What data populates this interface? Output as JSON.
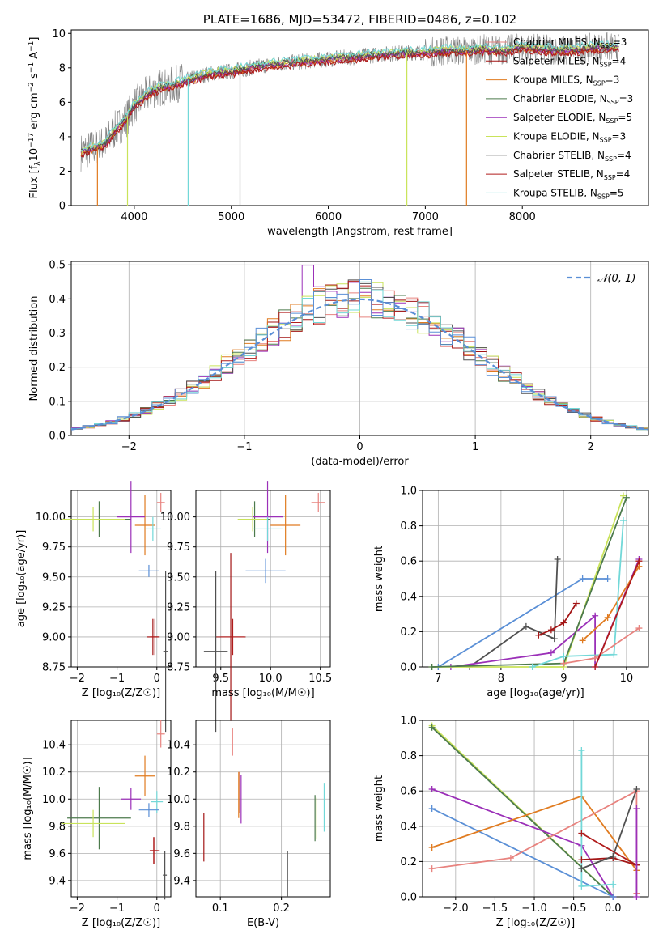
{
  "colors": {
    "ChM": "#e8837f",
    "SaM": "#a31515",
    "KrM": "#e07b20",
    "ChE": "#4c7a4c",
    "SaE": "#9b30b8",
    "KrE": "#c9e35a",
    "ChS": "#505050",
    "SaS": "#b01c1c",
    "KrS": "#72d8d8",
    "gauss": "#5a8fd6",
    "grid": "#b0b0b0"
  },
  "series": [
    {
      "key": "ChM",
      "label": "Chabrier MILES, N",
      "nssp": "=3"
    },
    {
      "key": "SaM",
      "label": "Salpeter MILES, N",
      "nssp": "=4"
    },
    {
      "key": "KrM",
      "label": "Kroupa MILES, N",
      "nssp": "=3"
    },
    {
      "key": "ChE",
      "label": "Chabrier ELODIE, N",
      "nssp": "=3"
    },
    {
      "key": "SaE",
      "label": "Salpeter ELODIE, N",
      "nssp": "=5"
    },
    {
      "key": "KrE",
      "label": "Kroupa ELODIE, N",
      "nssp": "=3"
    },
    {
      "key": "ChS",
      "label": "Chabrier STELIB, N",
      "nssp": "=4"
    },
    {
      "key": "SaS",
      "label": "Salpeter STELIB, N",
      "nssp": "=4"
    },
    {
      "key": "KrS",
      "label": "Kroupa STELIB, N",
      "nssp": "=5"
    }
  ],
  "chart_data": [
    {
      "id": "spectrum",
      "type": "line",
      "title": "PLATE=1686, MJD=53472, FIBERID=0486, z=0.102",
      "xlabel": "wavelength [Angstrom, rest frame]",
      "ylabel": "Flux [f_λ10^-17 erg cm^-2 s^-1 A^-1]",
      "xlim": [
        3350,
        9300
      ],
      "ylim": [
        0,
        10.2
      ],
      "xticks": [
        4000,
        5000,
        6000,
        7000,
        8000
      ],
      "yticks": [
        0,
        2,
        4,
        6,
        8,
        10
      ],
      "observed": {
        "x": [
          3450,
          3550,
          3700,
          3800,
          3900,
          4000,
          4100,
          4200,
          4300,
          4400,
          4500,
          4600,
          4800,
          5000,
          5200,
          5400,
          5600,
          5800,
          6000,
          6200,
          6400,
          6600,
          6800,
          7000,
          7200,
          7400,
          7600,
          7800,
          8000,
          8200,
          8400,
          8600,
          8800,
          9000
        ],
        "y": [
          3.1,
          3.3,
          3.6,
          4.4,
          4.9,
          5.8,
          6.3,
          6.7,
          6.9,
          7.0,
          7.2,
          7.4,
          7.7,
          7.8,
          8.0,
          8.2,
          8.3,
          8.4,
          8.5,
          8.6,
          8.7,
          8.8,
          8.9,
          8.9,
          9.0,
          9.0,
          9.1,
          9.0,
          9.2,
          9.1,
          9.0,
          9.1,
          9.2,
          9.2
        ]
      },
      "model_shift": {
        "ChM": 0.0,
        "SaM": -0.15,
        "KrM": -0.1,
        "ChE": 0.05,
        "SaE": -0.05,
        "KrE": 0.1,
        "ChS": 0.0,
        "SaS": -0.2,
        "KrS": 0.2
      },
      "dips": [
        {
          "x": 3620,
          "y": 0
        },
        {
          "x": 3930,
          "y": 0
        },
        {
          "x": 4555,
          "y": 0
        },
        {
          "x": 5090,
          "y": 0
        },
        {
          "x": 6810,
          "y": 0
        },
        {
          "x": 7425,
          "y": 0
        }
      ]
    },
    {
      "id": "residuals",
      "type": "histogram",
      "xlabel": "(data-model)/error",
      "ylabel": "Normed distribution",
      "xlim": [
        -2.5,
        2.5
      ],
      "ylim": [
        0,
        0.51
      ],
      "xticks": [
        -2,
        -1,
        0,
        1,
        2
      ],
      "yticks": [
        0.0,
        0.1,
        0.2,
        0.3,
        0.4,
        0.5
      ],
      "gauss_label": "𝒩(0, 1)",
      "bin_width": 0.1
    },
    {
      "id": "age_vs_Z",
      "type": "errorbar",
      "xlabel": "Z [log₁₀(Z/Z☉)]",
      "ylabel": "age  [log₁₀(age/yr)]",
      "xlim": [
        -2.15,
        0.35
      ],
      "ylim": [
        8.75,
        10.22
      ],
      "xticks": [
        -2,
        -1,
        0
      ],
      "yticks": [
        8.75,
        9.0,
        9.25,
        9.5,
        9.75,
        10.0
      ],
      "points": [
        {
          "k": "ChM",
          "x": 0.1,
          "y": 10.12,
          "xe": 0.1,
          "ye": 0.08
        },
        {
          "k": "SaM",
          "x": -0.1,
          "y": 9.0,
          "xe": 0.15,
          "ye": 0.15
        },
        {
          "k": "KrM",
          "x": -0.3,
          "y": 9.93,
          "xe": 0.25,
          "ye": 0.25
        },
        {
          "k": "ChE",
          "x": -1.45,
          "y": 9.98,
          "xe": 0.8,
          "ye": 0.15
        },
        {
          "k": "SaE",
          "x": -0.65,
          "y": 10.0,
          "xe": 0.35,
          "ye": 0.3
        },
        {
          "k": "KrE",
          "x": -1.6,
          "y": 9.98,
          "xe": 0.8,
          "ye": 0.1
        },
        {
          "k": "ChS",
          "x": 0.22,
          "y": 8.88,
          "xe": 0.06,
          "ye": 0.67
        },
        {
          "k": "SaS",
          "x": -0.05,
          "y": 9.0,
          "xe": 0.12,
          "ye": 0.15
        },
        {
          "k": "KrS",
          "x": -0.1,
          "y": 9.9,
          "xe": 0.2,
          "ye": 0.1
        },
        {
          "k": "gauss",
          "x": -0.2,
          "y": 9.55,
          "xe": 0.25,
          "ye": 0.05
        }
      ]
    },
    {
      "id": "age_vs_mass",
      "type": "errorbar",
      "xlabel": "mass [log₁₀(M/M☉)]",
      "xlim": [
        9.25,
        10.6
      ],
      "ylim": [
        8.75,
        10.22
      ],
      "xticks": [
        9.5,
        10.0,
        10.5
      ],
      "yticks": [
        8.75,
        9.0,
        9.25,
        9.5,
        9.75,
        10.0
      ],
      "points": [
        {
          "k": "ChM",
          "x": 10.48,
          "y": 10.12,
          "xe": 0.07,
          "ye": 0.08
        },
        {
          "k": "SaM",
          "x": 9.6,
          "y": 9.0,
          "xe": 0.15,
          "ye": 0.7
        },
        {
          "k": "KrM",
          "x": 10.15,
          "y": 9.93,
          "xe": 0.15,
          "ye": 0.25
        },
        {
          "k": "ChE",
          "x": 9.84,
          "y": 9.98,
          "xe": 0.15,
          "ye": 0.15
        },
        {
          "k": "SaE",
          "x": 9.97,
          "y": 10.0,
          "xe": 0.15,
          "ye": 0.3
        },
        {
          "k": "KrE",
          "x": 9.82,
          "y": 9.98,
          "xe": 0.15,
          "ye": 0.1
        },
        {
          "k": "ChS",
          "x": 9.45,
          "y": 8.88,
          "xe": 0.12,
          "ye": 0.67
        },
        {
          "k": "SaS",
          "x": 9.62,
          "y": 9.0,
          "xe": 0.12,
          "ye": 0.15
        },
        {
          "k": "KrS",
          "x": 9.97,
          "y": 9.9,
          "xe": 0.15,
          "ye": 0.1
        },
        {
          "k": "gauss",
          "x": 9.95,
          "y": 9.55,
          "xe": 0.2,
          "ye": 0.1
        }
      ]
    },
    {
      "id": "weight_vs_age",
      "type": "line",
      "xlabel": "age  [log₁₀(age/yr)]",
      "ylabel": "mass weight",
      "xlim": [
        6.75,
        10.35
      ],
      "ylim": [
        0,
        1.0
      ],
      "xticks": [
        7,
        8,
        9,
        10
      ],
      "yticks": [
        0.0,
        0.2,
        0.4,
        0.6,
        0.8,
        1.0
      ],
      "lines": [
        {
          "k": "gauss",
          "x": [
            7.0,
            9.3,
            9.7
          ],
          "y": [
            0.0,
            0.5,
            0.5
          ]
        },
        {
          "k": "ChS",
          "x": 7.5,
          "y2": 0
        },
        {
          "k": "ChS",
          "x": [
            7.5,
            8.4,
            8.85,
            8.9
          ],
          "y": [
            0.0,
            0.23,
            0.16,
            0.61
          ]
        },
        {
          "k": "SaM",
          "x": [
            8.6,
            8.8,
            9.0,
            9.2
          ],
          "y": [
            0.18,
            0.21,
            0.25,
            0.36
          ]
        },
        {
          "k": "SaE",
          "x": [
            7.2,
            8.8,
            9.5,
            9.5,
            10.2
          ],
          "y": [
            0.0,
            0.08,
            0.29,
            0.0,
            0.61
          ]
        },
        {
          "k": "KrM",
          "x": [
            9.3,
            9.7,
            10.2
          ],
          "y": [
            0.15,
            0.28,
            0.57
          ]
        },
        {
          "k": "KrE",
          "x": [
            6.9,
            9.0,
            9.95
          ],
          "y": [
            0.0,
            0.0,
            0.97
          ]
        },
        {
          "k": "ChE",
          "x": [
            6.9,
            9.0,
            10.0
          ],
          "y": [
            0.0,
            0.02,
            0.96
          ]
        },
        {
          "k": "KrS",
          "x": [
            8.5,
            9.0,
            9.8,
            9.95
          ],
          "y": [
            0.0,
            0.06,
            0.07,
            0.83
          ]
        },
        {
          "k": "ChM",
          "x": [
            9.0,
            9.5,
            10.2
          ],
          "y": [
            0.02,
            0.05,
            0.22
          ]
        },
        {
          "k": "SaS",
          "x": [
            9.5,
            10.2
          ],
          "y": [
            0.0,
            0.6
          ]
        }
      ]
    },
    {
      "id": "mass_vs_Z",
      "type": "errorbar",
      "xlabel": "Z [log₁₀(Z/Z☉)]",
      "ylabel": "mass [log₁₀(M/M☉)]",
      "xlim": [
        -2.15,
        0.35
      ],
      "ylim": [
        9.28,
        10.58
      ],
      "xticks": [
        -2,
        -1,
        0
      ],
      "yticks": [
        9.4,
        9.6,
        9.8,
        10.0,
        10.2,
        10.4
      ],
      "points": [
        {
          "k": "ChM",
          "x": 0.1,
          "y": 10.48,
          "xe": 0.1,
          "ye": 0.1
        },
        {
          "k": "SaM",
          "x": -0.05,
          "y": 9.62,
          "xe": 0.12,
          "ye": 0.1
        },
        {
          "k": "KrM",
          "x": -0.3,
          "y": 10.17,
          "xe": 0.25,
          "ye": 0.15
        },
        {
          "k": "ChE",
          "x": -1.45,
          "y": 9.86,
          "xe": 0.8,
          "ye": 0.23
        },
        {
          "k": "SaE",
          "x": -0.65,
          "y": 10.0,
          "xe": 0.25,
          "ye": 0.08
        },
        {
          "k": "KrE",
          "x": -1.6,
          "y": 9.82,
          "xe": 0.8,
          "ye": 0.1
        },
        {
          "k": "ChS",
          "x": 0.2,
          "y": 9.44,
          "xe": 0.05,
          "ye": 0.18
        },
        {
          "k": "SaS",
          "x": -0.08,
          "y": 9.62,
          "xe": 0.1,
          "ye": 0.1
        },
        {
          "k": "KrS",
          "x": 0.0,
          "y": 9.98,
          "xe": 0.15,
          "ye": 0.08
        },
        {
          "k": "gauss",
          "x": -0.2,
          "y": 9.92,
          "xe": 0.25,
          "ye": 0.05
        }
      ]
    },
    {
      "id": "mass_vs_EBV",
      "type": "errorbar",
      "xlabel": "E(B-V)",
      "xlim": [
        0.06,
        0.28
      ],
      "ylim": [
        9.28,
        10.58
      ],
      "xticks": [
        0.1,
        0.2
      ],
      "yticks": [
        9.4,
        9.6,
        9.8,
        10.0,
        10.2,
        10.4
      ],
      "points": [
        {
          "k": "ChM",
          "x": 0.12,
          "y": 10.42,
          "xe": 0,
          "ye": 0.1
        },
        {
          "k": "SaM",
          "x": 0.073,
          "y": 9.72,
          "xe": 0,
          "ye": 0.18
        },
        {
          "k": "KrM",
          "x": 0.13,
          "y": 10.03,
          "xe": 0,
          "ye": 0.17
        },
        {
          "k": "ChE",
          "x": 0.255,
          "y": 9.86,
          "xe": 0,
          "ye": 0.17
        },
        {
          "k": "SaE",
          "x": 0.134,
          "y": 10.0,
          "xe": 0,
          "ye": 0.18
        },
        {
          "k": "KrE",
          "x": 0.258,
          "y": 9.86,
          "xe": 0,
          "ye": 0.15
        },
        {
          "k": "ChS",
          "x": 0.21,
          "y": 9.45,
          "xe": 0,
          "ye": 0.17
        },
        {
          "k": "SaS",
          "x": 0.132,
          "y": 10.05,
          "xe": 0,
          "ye": 0.15
        },
        {
          "k": "KrS",
          "x": 0.27,
          "y": 9.94,
          "xe": 0,
          "ye": 0.18
        }
      ]
    },
    {
      "id": "weight_vs_Z",
      "type": "line",
      "xlabel": "Z [log₁₀(Z/Z☉)]",
      "ylabel": "mass weight",
      "xlim": [
        -2.42,
        0.45
      ],
      "ylim": [
        0,
        1.0
      ],
      "xticks": [
        -2.0,
        -1.5,
        -1.0,
        -0.5,
        0.0
      ],
      "yticks": [
        0.0,
        0.2,
        0.4,
        0.6,
        0.8,
        1.0
      ],
      "lines": [
        {
          "k": "KrE",
          "x": [
            -2.3,
            0.0
          ],
          "y": [
            0.97,
            0.0
          ]
        },
        {
          "k": "ChE",
          "x": [
            -2.3,
            0.0
          ],
          "y": [
            0.96,
            0.0
          ]
        },
        {
          "k": "SaE",
          "x": [
            -2.3,
            -0.4,
            0.0,
            0.0
          ],
          "y": [
            0.61,
            0.29,
            0.0,
            0.0
          ]
        },
        {
          "k": "gauss",
          "x": [
            -2.3,
            0.0
          ],
          "y": [
            0.5,
            0.0
          ]
        },
        {
          "k": "KrM",
          "x": [
            -2.3,
            -0.4,
            0.3
          ],
          "y": [
            0.28,
            0.57,
            0.15
          ]
        },
        {
          "k": "ChM",
          "x": [
            -2.3,
            -1.3,
            0.3,
            0.3
          ],
          "y": [
            0.16,
            0.22,
            0.6,
            0.02
          ]
        },
        {
          "k": "KrS",
          "x": [
            -0.4,
            -0.4,
            0.0
          ],
          "y": [
            0.83,
            0.06,
            0.07
          ]
        },
        {
          "k": "SaS",
          "x": [
            -0.4,
            0.3
          ],
          "y": [
            0.36,
            0.18
          ]
        },
        {
          "k": "SaM",
          "x": [
            -0.4,
            0.0,
            0.3
          ],
          "y": [
            0.21,
            0.22,
            0.18
          ]
        },
        {
          "k": "ChS",
          "x": [
            -0.4,
            0.0,
            0.3
          ],
          "y": [
            0.16,
            0.23,
            0.61
          ]
        },
        {
          "k": "SaE",
          "x": [
            0.3,
            0.3
          ],
          "y": [
            0.0,
            0.5
          ]
        }
      ]
    }
  ]
}
